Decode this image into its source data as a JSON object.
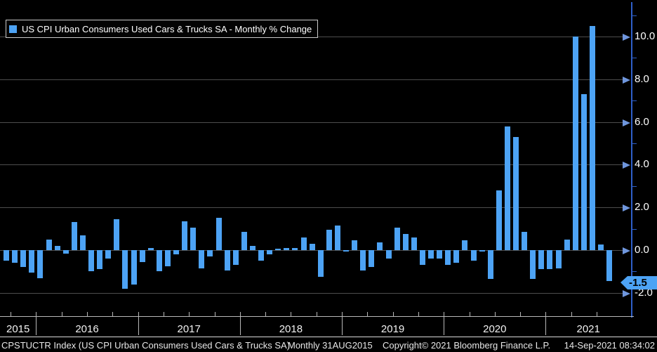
{
  "legend": {
    "label": "US CPI Urban Consumers Used Cars & Trucks SA - Monthly % Change"
  },
  "y_axis": {
    "tick_labels": [
      "10.0",
      "8.0",
      "6.0",
      "4.0",
      "2.0",
      "0.0",
      "-2.0"
    ],
    "last_value_badge": "-1.5"
  },
  "x_axis": {
    "year_labels": [
      "2015",
      "2016",
      "2017",
      "2018",
      "2019",
      "2020",
      "2021"
    ]
  },
  "footer": {
    "security": "CPSTUCTR Index (US CPI Urban Consumers Used Cars & Trucks SA)",
    "periodicity": "Monthly 31AUG2015",
    "copyright": "Copyright© 2021 Bloomberg Finance L.P.",
    "timestamp": "14-Sep-2021 08:34:02"
  },
  "colors": {
    "background": "#000000",
    "bar": "#4DA3F5",
    "axis_blue": "#2E5FC9",
    "grid": "#4D4D4D",
    "xaxis_gray": "#B8B8B8",
    "text": "#FFFFFF",
    "badge_bg": "#4DA3F5",
    "badge_text": "#000000"
  },
  "chart_data": {
    "type": "bar",
    "title": "US CPI Urban Consumers Used Cars & Trucks SA - Monthly % Change",
    "ylabel": "Monthly % Change",
    "ylim": [
      -3.1,
      11.1
    ],
    "yticks": [
      10,
      8,
      6,
      4,
      2,
      0,
      -2
    ],
    "minor_yticks": [
      11,
      9,
      7,
      5,
      3,
      1,
      -1
    ],
    "grid": "horizontal",
    "legend_position": "top-left",
    "last_value": -1.5,
    "x": [
      "2015-09",
      "2015-10",
      "2015-11",
      "2015-12",
      "2016-01",
      "2016-02",
      "2016-03",
      "2016-04",
      "2016-05",
      "2016-06",
      "2016-07",
      "2016-08",
      "2016-09",
      "2016-10",
      "2016-11",
      "2016-12",
      "2017-01",
      "2017-02",
      "2017-03",
      "2017-04",
      "2017-05",
      "2017-06",
      "2017-07",
      "2017-08",
      "2017-09",
      "2017-10",
      "2017-11",
      "2017-12",
      "2018-01",
      "2018-02",
      "2018-03",
      "2018-04",
      "2018-05",
      "2018-06",
      "2018-07",
      "2018-08",
      "2018-09",
      "2018-10",
      "2018-11",
      "2018-12",
      "2019-01",
      "2019-02",
      "2019-03",
      "2019-04",
      "2019-05",
      "2019-06",
      "2019-07",
      "2019-08",
      "2019-09",
      "2019-10",
      "2019-11",
      "2019-12",
      "2020-01",
      "2020-02",
      "2020-03",
      "2020-04",
      "2020-05",
      "2020-06",
      "2020-07",
      "2020-08",
      "2020-09",
      "2020-10",
      "2020-11",
      "2020-12",
      "2021-01",
      "2021-02",
      "2021-03",
      "2021-04",
      "2021-05",
      "2021-06",
      "2021-07",
      "2021-08"
    ],
    "values": [
      -0.5,
      -0.6,
      -0.8,
      -1.05,
      -1.3,
      0.5,
      0.2,
      -0.15,
      1.3,
      0.7,
      -1.0,
      -0.9,
      -0.4,
      1.45,
      -1.8,
      -1.6,
      -0.55,
      0.1,
      -1.0,
      -0.75,
      -0.2,
      1.35,
      1.05,
      -0.85,
      -0.3,
      1.5,
      -0.95,
      -0.7,
      0.85,
      0.2,
      -0.5,
      -0.2,
      0.05,
      0.1,
      0.1,
      0.6,
      0.3,
      -1.25,
      0.95,
      1.15,
      -0.05,
      0.45,
      -0.95,
      -0.8,
      0.35,
      -0.4,
      1.05,
      0.75,
      0.6,
      -0.7,
      -0.4,
      -0.4,
      -0.7,
      -0.6,
      0.45,
      -0.5,
      -0.05,
      -1.35,
      2.8,
      5.8,
      5.3,
      0.85,
      -1.35,
      -0.9,
      -0.9,
      -0.85,
      0.5,
      10.0,
      7.3,
      10.5,
      0.25,
      -1.45
    ]
  }
}
